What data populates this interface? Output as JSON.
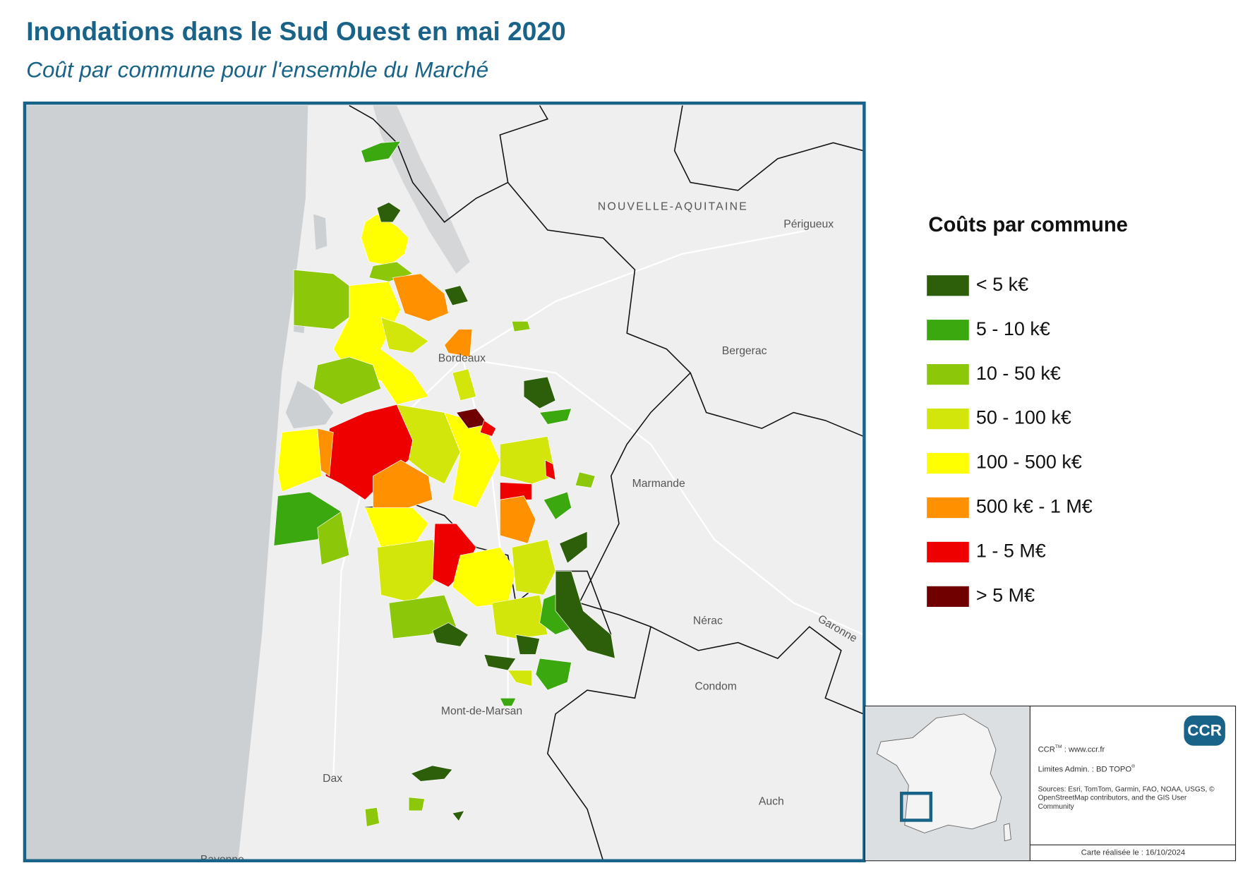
{
  "header": {
    "title": "Inondations dans le Sud Ouest en mai 2020",
    "subtitle": "Coût par commune pour l'ensemble du Marché"
  },
  "map": {
    "places": {
      "bordeaux": "Bordeaux",
      "region": "NOUVELLE-AQUITAINE",
      "perigueux": "Périgueux",
      "bergerac": "Bergerac",
      "marmande": "Marmande",
      "nerac": "Nérac",
      "condom": "Condom",
      "montdemarsan": "Mont-de-Marsan",
      "dax": "Dax",
      "auch": "Auch",
      "garonne": "Garonne",
      "bayonne": "Bayonne"
    }
  },
  "legend": {
    "title": "Coûts par commune",
    "items": [
      {
        "label": "< 5 k€",
        "color": "#2d5f0a"
      },
      {
        "label": "5 - 10 k€",
        "color": "#3aa80e"
      },
      {
        "label": "10 - 50 k€",
        "color": "#8cc70a"
      },
      {
        "label": "50 - 100 k€",
        "color": "#d3e60c"
      },
      {
        "label": "100 - 500 k€",
        "color": "#ffff00"
      },
      {
        "label": "500 k€ - 1 M€",
        "color": "#ff9100"
      },
      {
        "label": "1 - 5 M€",
        "color": "#ee0000"
      },
      {
        "label": "> 5 M€",
        "color": "#700000"
      }
    ]
  },
  "footer": {
    "logo": "CCR",
    "ccr": "CCR",
    "tm": "TM",
    "site": " : www.ccr.fr",
    "limits": "Limites Admin. : BD TOPO",
    "reg": "®",
    "sources1": "Sources: Esri, TomTom, Garmin, FAO, NOAA, USGS, ©",
    "sources2": "OpenStreetMap contributors, and the GIS User",
    "sources3": "Community",
    "date": "Carte réalisée le : 16/10/2024"
  }
}
